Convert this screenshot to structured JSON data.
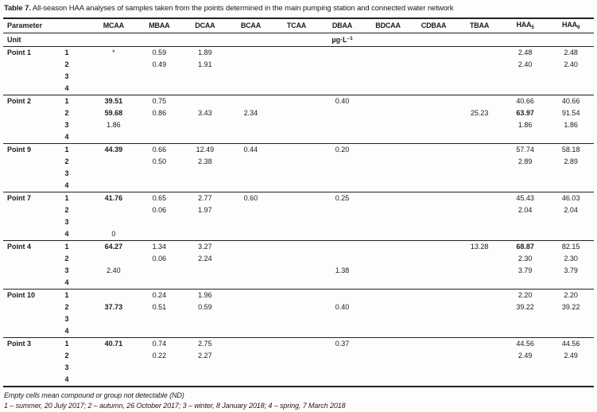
{
  "title": {
    "label": "Table 7.",
    "text": "All-season HAA analyses of samples taken from the points determined in the main pumping station and connected water network"
  },
  "header": {
    "parameter": "Parameter",
    "unit_label": "Unit",
    "unit_value": {
      "base": "µg·L",
      "sup": "–1"
    },
    "columns": [
      {
        "name": "MCAA"
      },
      {
        "name": "MBAA"
      },
      {
        "name": "DCAA"
      },
      {
        "name": "BCAA"
      },
      {
        "name": "TCAA"
      },
      {
        "name": "DBAA"
      },
      {
        "name": "BDCAA"
      },
      {
        "name": "CDBAA"
      },
      {
        "name": "TBAA"
      },
      {
        "name": "HAA",
        "sub": "5"
      },
      {
        "name": "HAA",
        "sub": "9"
      }
    ]
  },
  "groups": [
    {
      "point": "Point 1",
      "rows": [
        {
          "season": "1",
          "cells": [
            "*",
            "0.59",
            "1.89",
            "",
            "",
            "",
            "",
            "",
            "",
            "2.48",
            "2.48"
          ]
        },
        {
          "season": "2",
          "cells": [
            "",
            "0.49",
            "1.91",
            "",
            "",
            "",
            "",
            "",
            "",
            "2.40",
            "2.40"
          ]
        },
        {
          "season": "3",
          "cells": [
            "",
            "",
            "",
            "",
            "",
            "",
            "",
            "",
            "",
            "",
            ""
          ]
        },
        {
          "season": "4",
          "cells": [
            "",
            "",
            "",
            "",
            "",
            "",
            "",
            "",
            "",
            "",
            ""
          ]
        }
      ]
    },
    {
      "point": "Point 2",
      "rows": [
        {
          "season": "1",
          "cells": [
            {
              "v": "39.51",
              "bold": true
            },
            "0.75",
            "",
            "",
            "",
            "0.40",
            "",
            "",
            "",
            "40.66",
            "40.66"
          ]
        },
        {
          "season": "2",
          "cells": [
            {
              "v": "59.68",
              "bold": true
            },
            "0.86",
            "3.43",
            "2.34",
            "",
            "",
            "",
            "",
            "25.23",
            {
              "v": "63.97",
              "bold": true
            },
            "91.54"
          ]
        },
        {
          "season": "3",
          "cells": [
            "1.86",
            "",
            "",
            "",
            "",
            "",
            "",
            "",
            "",
            "1.86",
            "1.86"
          ]
        },
        {
          "season": "4",
          "cells": [
            "",
            "",
            "",
            "",
            "",
            "",
            "",
            "",
            "",
            "",
            ""
          ]
        }
      ]
    },
    {
      "point": "Point 9",
      "rows": [
        {
          "season": "1",
          "cells": [
            {
              "v": "44.39",
              "bold": true
            },
            "0.66",
            "12.49",
            "0.44",
            "",
            "0.20",
            "",
            "",
            "",
            "57.74",
            "58.18"
          ]
        },
        {
          "season": "2",
          "cells": [
            "",
            "0.50",
            "2.38",
            "",
            "",
            "",
            "",
            "",
            "",
            "2.89",
            "2.89"
          ]
        },
        {
          "season": "3",
          "cells": [
            "",
            "",
            "",
            "",
            "",
            "",
            "",
            "",
            "",
            "",
            ""
          ]
        },
        {
          "season": "4",
          "cells": [
            "",
            "",
            "",
            "",
            "",
            "",
            "",
            "",
            "",
            "",
            ""
          ]
        }
      ]
    },
    {
      "point": "Point 7",
      "rows": [
        {
          "season": "1",
          "cells": [
            {
              "v": "41.76",
              "bold": true
            },
            "0.65",
            "2.77",
            "0.60",
            "",
            "0.25",
            "",
            "",
            "",
            "45.43",
            "46.03"
          ]
        },
        {
          "season": "2",
          "cells": [
            "",
            "0.06",
            "1.97",
            "",
            "",
            "",
            "",
            "",
            "",
            "2.04",
            "2.04"
          ]
        },
        {
          "season": "3",
          "cells": [
            "",
            "",
            "",
            "",
            "",
            "",
            "",
            "",
            "",
            "",
            ""
          ]
        },
        {
          "season": "4",
          "cells": [
            "0",
            "",
            "",
            "",
            "",
            "",
            "",
            "",
            "",
            "",
            ""
          ]
        }
      ]
    },
    {
      "point": "Point 4",
      "rows": [
        {
          "season": "1",
          "cells": [
            {
              "v": "64.27",
              "bold": true
            },
            "1.34",
            "3.27",
            "",
            "",
            "",
            "",
            "",
            "13.28",
            {
              "v": "68.87",
              "bold": true
            },
            "82.15"
          ]
        },
        {
          "season": "2",
          "cells": [
            "",
            "0.06",
            "2.24",
            "",
            "",
            "",
            "",
            "",
            "",
            "2.30",
            "2.30"
          ]
        },
        {
          "season": "3",
          "cells": [
            "2.40",
            "",
            "",
            "",
            "",
            "1.38",
            "",
            "",
            "",
            "3.79",
            "3.79"
          ]
        },
        {
          "season": "4",
          "cells": [
            "",
            "",
            "",
            "",
            "",
            "",
            "",
            "",
            "",
            "",
            ""
          ]
        }
      ]
    },
    {
      "point": "Point 10",
      "rows": [
        {
          "season": "1",
          "cells": [
            "",
            "0.24",
            "1.96",
            "",
            "",
            "",
            "",
            "",
            "",
            "2.20",
            "2.20"
          ]
        },
        {
          "season": "2",
          "cells": [
            {
              "v": "37.73",
              "bold": true
            },
            "0.51",
            "0.59",
            "",
            "",
            "0.40",
            "",
            "",
            "",
            "39.22",
            "39.22"
          ]
        },
        {
          "season": "3",
          "cells": [
            "",
            "",
            "",
            "",
            "",
            "",
            "",
            "",
            "",
            "",
            ""
          ]
        },
        {
          "season": "4",
          "cells": [
            "",
            "",
            "",
            "",
            "",
            "",
            "",
            "",
            "",
            "",
            ""
          ]
        }
      ]
    },
    {
      "point": "Point 3",
      "rows": [
        {
          "season": "1",
          "cells": [
            {
              "v": "40.71",
              "bold": true
            },
            "0.74",
            "2.75",
            "",
            "",
            "0.37",
            "",
            "",
            "",
            "44.56",
            "44.56"
          ]
        },
        {
          "season": "2",
          "cells": [
            "",
            "0.22",
            "2.27",
            "",
            "",
            "",
            "",
            "",
            "",
            "2.49",
            "2.49"
          ]
        },
        {
          "season": "3",
          "cells": [
            "",
            "",
            "",
            "",
            "",
            "",
            "",
            "",
            "",
            "",
            ""
          ]
        },
        {
          "season": "4",
          "cells": [
            "",
            "",
            "",
            "",
            "",
            "",
            "",
            "",
            "",
            "",
            ""
          ]
        }
      ]
    }
  ],
  "footnotes": [
    "Empty cells mean compound or group not detectable (ND)",
    "1 – summer, 20 July 2017; 2 – autumn, 26 October 2017; 3 – winter, 8 January 2018; 4 – spring, 7 March 2018"
  ]
}
